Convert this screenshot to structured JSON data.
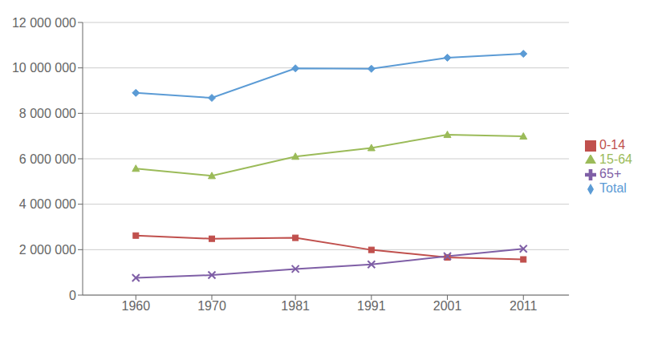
{
  "chart_data": {
    "type": "line",
    "x": [
      1960,
      1970,
      1981,
      1991,
      2001,
      2011
    ],
    "xlim": [
      1953,
      2017
    ],
    "xticks": [
      1960,
      1970,
      1981,
      1991,
      2001,
      2011
    ],
    "ylim": [
      0,
      12000000
    ],
    "yticks": [
      0,
      {
        "value": 2000000,
        "label": "2 000 000"
      },
      {
        "value": 4000000,
        "label": "4 000 000"
      },
      {
        "value": 6000000,
        "label": "6 000 000"
      },
      {
        "value": 8000000,
        "label": "8 000 000"
      },
      {
        "value": 10000000,
        "label": "10 000 000"
      },
      {
        "value": 12000000,
        "label": "12 000 000"
      }
    ],
    "grid": "y",
    "legend": "right",
    "series": [
      {
        "name": "Total",
        "color": "#5B9BD5",
        "marker": "diamond",
        "values": [
          8900000,
          8680000,
          9980000,
          9960000,
          10450000,
          10620000
        ]
      },
      {
        "name": "0-14",
        "color": "#C0504D",
        "marker": "square",
        "values": [
          2620000,
          2480000,
          2520000,
          1990000,
          1660000,
          1570000
        ]
      },
      {
        "name": "15-64",
        "color": "#9BBB59",
        "marker": "triangle",
        "values": [
          5570000,
          5250000,
          6100000,
          6480000,
          7060000,
          6990000
        ]
      },
      {
        "name": "65+",
        "color": "#7F5FA6",
        "marker": "x",
        "values": [
          760000,
          880000,
          1150000,
          1350000,
          1710000,
          2040000
        ]
      }
    ]
  }
}
